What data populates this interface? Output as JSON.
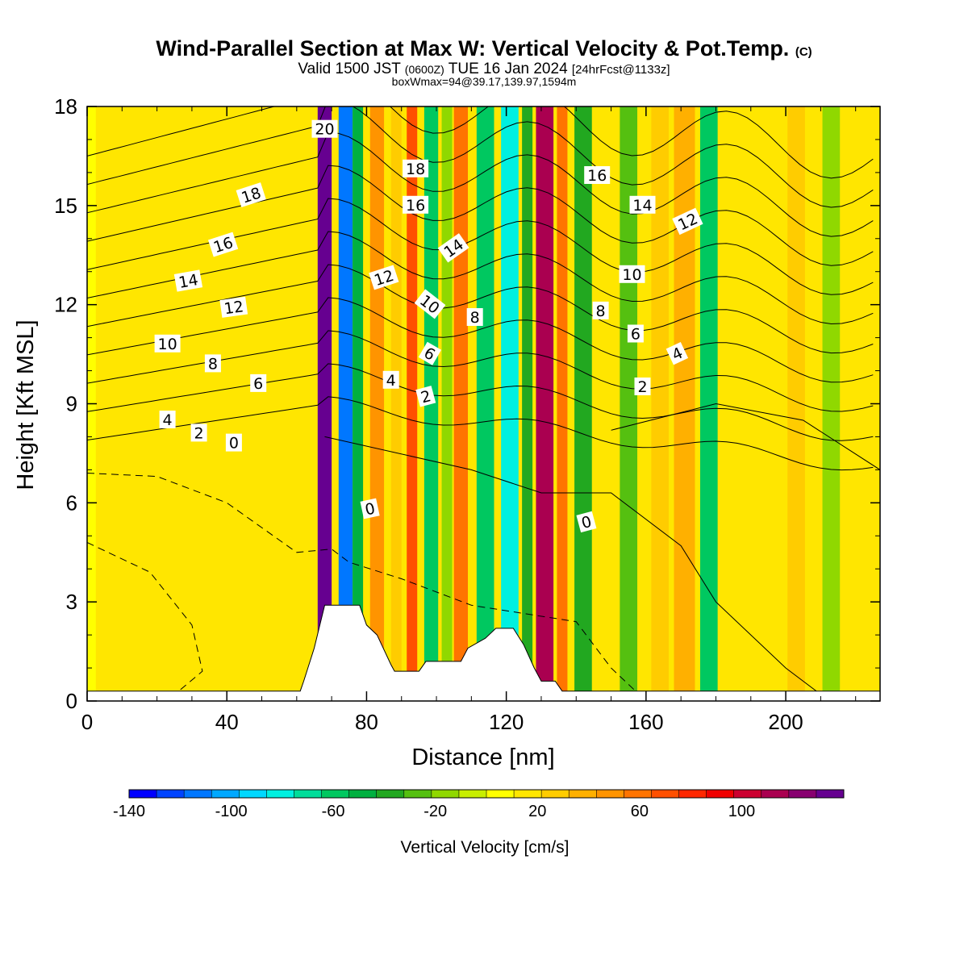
{
  "title": {
    "main": "Wind-Parallel Section at Max W: Vertical Velocity & Pot.Temp.",
    "main_mark": "(C)",
    "valid_prefix": "Valid 1500 JST",
    "valid_utc": "(0600Z)",
    "valid_date": "TUE 16 Jan 2024",
    "forecast": "[24hrFcst@1133z]",
    "boxline": "boxWmax=94@39.17,139.97,1594m"
  },
  "chart_data": {
    "type": "heatmap",
    "xlabel": "Distance [nm]",
    "ylabel": "Height [Kft MSL]",
    "xlim": [
      0,
      227
    ],
    "ylim": [
      0,
      18
    ],
    "x_ticks": [
      "0",
      "40",
      "80",
      "120",
      "160",
      "200"
    ],
    "y_ticks": [
      "0",
      "3",
      "6",
      "9",
      "12",
      "15",
      "18"
    ],
    "colorbar": {
      "label": "Vertical Velocity [cm/s]",
      "range": [
        -140,
        140
      ],
      "tick_labels": [
        "-140",
        "-100",
        "-60",
        "-20",
        "20",
        "60",
        "100"
      ],
      "colors": [
        "#0000ff",
        "#0044ff",
        "#0077ff",
        "#00a8ff",
        "#00d8ff",
        "#00f0e0",
        "#00dd9a",
        "#00c860",
        "#00b040",
        "#22a820",
        "#55c010",
        "#90d800",
        "#c8ee00",
        "#ffff00",
        "#ffe600",
        "#ffcc00",
        "#ffb000",
        "#ff9400",
        "#ff7400",
        "#ff5000",
        "#ff2800",
        "#f00000",
        "#cc0030",
        "#aa0050",
        "#880070",
        "#660090"
      ]
    },
    "vertical_velocity_bands": [
      {
        "x": 1,
        "w": 3,
        "v": 10
      },
      {
        "x": 13,
        "w": 8,
        "v": 14
      },
      {
        "x": 28,
        "w": 10,
        "v": 12
      },
      {
        "x": 44,
        "w": 6,
        "v": 16
      },
      {
        "x": 68,
        "w": 4,
        "v": 130
      },
      {
        "x": 74,
        "w": 4,
        "v": -112
      },
      {
        "x": 77.5,
        "w": 3,
        "v": -50
      },
      {
        "x": 83,
        "w": 4,
        "v": 52
      },
      {
        "x": 88.5,
        "w": 3,
        "v": 24
      },
      {
        "x": 93,
        "w": 3,
        "v": 68
      },
      {
        "x": 98.5,
        "w": 4,
        "v": -58
      },
      {
        "x": 103,
        "w": 3,
        "v": -18
      },
      {
        "x": 107,
        "w": 4,
        "v": 62
      },
      {
        "x": 114,
        "w": 5,
        "v": -64
      },
      {
        "x": 121,
        "w": 5,
        "v": -86
      },
      {
        "x": 126,
        "w": 3,
        "v": -40
      },
      {
        "x": 131,
        "w": 5,
        "v": 110
      },
      {
        "x": 136,
        "w": 3,
        "v": 56
      },
      {
        "x": 142,
        "w": 5,
        "v": -38
      },
      {
        "x": 148,
        "w": 3,
        "v": 18
      },
      {
        "x": 155,
        "w": 5,
        "v": -24
      },
      {
        "x": 164,
        "w": 5,
        "v": 26
      },
      {
        "x": 171,
        "w": 6,
        "v": 40
      },
      {
        "x": 178,
        "w": 5,
        "v": -64
      },
      {
        "x": 186,
        "w": 5,
        "v": 14
      },
      {
        "x": 193,
        "w": 6,
        "v": 20
      },
      {
        "x": 203,
        "w": 5,
        "v": 30
      },
      {
        "x": 213,
        "w": 5,
        "v": -20
      },
      {
        "x": 222,
        "w": 4,
        "v": 18
      }
    ],
    "terrain": [
      [
        0,
        0.3
      ],
      [
        61,
        0.3
      ],
      [
        62,
        0.6
      ],
      [
        65,
        1.6
      ],
      [
        68,
        2.9
      ],
      [
        78,
        2.9
      ],
      [
        80,
        2.3
      ],
      [
        83,
        2.0
      ],
      [
        87,
        1.1
      ],
      [
        88,
        0.9
      ],
      [
        95,
        0.9
      ],
      [
        97,
        1.2
      ],
      [
        107,
        1.2
      ],
      [
        109,
        1.6
      ],
      [
        114,
        1.9
      ],
      [
        117,
        2.2
      ],
      [
        122,
        2.2
      ],
      [
        125,
        1.7
      ],
      [
        128,
        1.0
      ],
      [
        130,
        0.6
      ],
      [
        134,
        0.6
      ],
      [
        136,
        0.3
      ],
      [
        227,
        0.3
      ]
    ],
    "theta_contours": {
      "levels_C": [
        0,
        2,
        4,
        6,
        8,
        10,
        12,
        14,
        16,
        18,
        20
      ],
      "labels": [
        {
          "text": "20",
          "x": 68,
          "y": 17.3,
          "r": 0
        },
        {
          "text": "18",
          "x": 47,
          "y": 15.3,
          "r": -18
        },
        {
          "text": "16",
          "x": 39,
          "y": 13.8,
          "r": -18
        },
        {
          "text": "14",
          "x": 29,
          "y": 12.7,
          "r": -10
        },
        {
          "text": "12",
          "x": 42,
          "y": 11.9,
          "r": -8
        },
        {
          "text": "10",
          "x": 23,
          "y": 10.8,
          "r": 0
        },
        {
          "text": "8",
          "x": 36,
          "y": 10.2,
          "r": 0
        },
        {
          "text": "6",
          "x": 49,
          "y": 9.6,
          "r": 0
        },
        {
          "text": "4",
          "x": 23,
          "y": 8.5,
          "r": 0
        },
        {
          "text": "2",
          "x": 32,
          "y": 8.1,
          "r": 0
        },
        {
          "text": "0",
          "x": 42,
          "y": 7.8,
          "r": 0
        },
        {
          "text": "18",
          "x": 94,
          "y": 16.1,
          "r": 0
        },
        {
          "text": "16",
          "x": 94,
          "y": 15.0,
          "r": 0
        },
        {
          "text": "12",
          "x": 85,
          "y": 12.8,
          "r": -18
        },
        {
          "text": "14",
          "x": 105,
          "y": 13.7,
          "r": -35
        },
        {
          "text": "10",
          "x": 98,
          "y": 12.0,
          "r": 38
        },
        {
          "text": "8",
          "x": 111,
          "y": 11.6,
          "r": 0
        },
        {
          "text": "6",
          "x": 98,
          "y": 10.5,
          "r": 30
        },
        {
          "text": "4",
          "x": 87,
          "y": 9.7,
          "r": 0
        },
        {
          "text": "2",
          "x": 97,
          "y": 9.2,
          "r": -15
        },
        {
          "text": "0",
          "x": 81,
          "y": 5.8,
          "r": -12
        },
        {
          "text": "16",
          "x": 146,
          "y": 15.9,
          "r": 0
        },
        {
          "text": "14",
          "x": 159,
          "y": 15.0,
          "r": 0
        },
        {
          "text": "12",
          "x": 172,
          "y": 14.5,
          "r": -25
        },
        {
          "text": "10",
          "x": 156,
          "y": 12.9,
          "r": 0
        },
        {
          "text": "8",
          "x": 147,
          "y": 11.8,
          "r": 0
        },
        {
          "text": "6",
          "x": 157,
          "y": 11.1,
          "r": 0
        },
        {
          "text": "4",
          "x": 169,
          "y": 10.5,
          "r": -25
        },
        {
          "text": "2",
          "x": 159,
          "y": 9.5,
          "r": 0
        },
        {
          "text": "0",
          "x": 143,
          "y": 5.4,
          "r": -15
        }
      ]
    }
  }
}
